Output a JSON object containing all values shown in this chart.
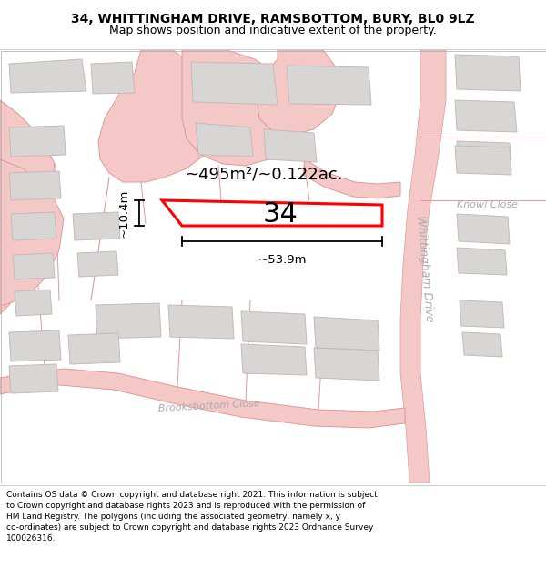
{
  "title_line1": "34, WHITTINGHAM DRIVE, RAMSBOTTOM, BURY, BL0 9LZ",
  "title_line2": "Map shows position and indicative extent of the property.",
  "footer_text": "Contains OS data © Crown copyright and database right 2021. This information is subject to Crown copyright and database rights 2023 and is reproduced with the permission of HM Land Registry. The polygons (including the associated geometry, namely x, y co-ordinates) are subject to Crown copyright and database rights 2023 Ordnance Survey 100026316.",
  "area_label": "~495m²/~0.122ac.",
  "number_label": "34",
  "width_label": "~53.9m",
  "height_label": "~10.4m",
  "road_label_whittingham": "Whittingham Drive",
  "road_label_brooksbottom": "Brooksbottom Close",
  "road_label_knowl": "Knowl Close",
  "map_bg": "#f7f4f4",
  "road_fill": "#f5c8c8",
  "road_edge": "#e09898",
  "road_line": "#e8a0a0",
  "building_fill": "#d8d5d5",
  "building_edge": "#c8b8b8",
  "plot_edge": "#ff0000",
  "plot_fill": "#ffffff",
  "dim_color": "#000000",
  "text_color": "#000000",
  "road_text_color": "#aaaaaa",
  "title_fs": 10,
  "subtitle_fs": 9,
  "footer_fs": 6.5,
  "area_fs": 13,
  "number_fs": 22,
  "dim_fs": 9.5,
  "road_fs": 9,
  "knowl_fs": 8
}
